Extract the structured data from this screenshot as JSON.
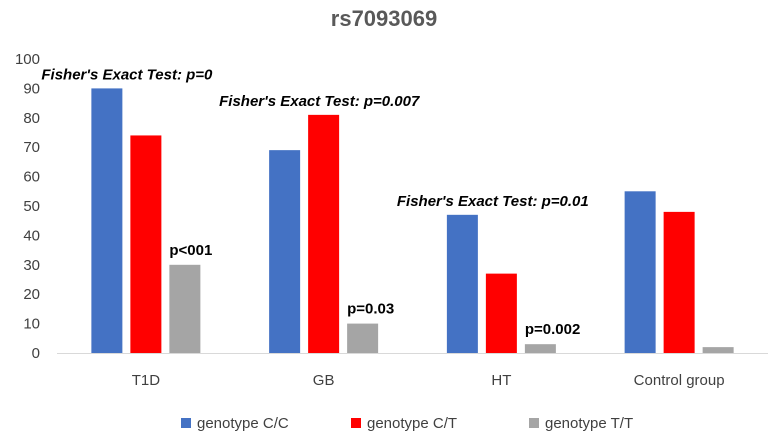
{
  "chart_data": {
    "type": "bar",
    "title": "rs7093069",
    "xlabel": "",
    "ylabel": "",
    "ylim": [
      0,
      100
    ],
    "yticks": [
      0,
      10,
      20,
      30,
      40,
      50,
      60,
      70,
      80,
      90,
      100
    ],
    "grid": false,
    "legend_position": "bottom",
    "categories": [
      "T1D",
      "GB",
      "HT",
      "Control group"
    ],
    "series": [
      {
        "name": "genotype C/C",
        "color": "#4472C4",
        "values": [
          90,
          69,
          47,
          55
        ]
      },
      {
        "name": "genotype C/T",
        "color": "#FF0000",
        "values": [
          74,
          81,
          27,
          48
        ]
      },
      {
        "name": "genotype T/T",
        "color": "#A5A5A5",
        "values": [
          30,
          10,
          3,
          2
        ]
      }
    ],
    "annotations": [
      {
        "text": "Fisher's Exact Test: p=0",
        "category": "T1D"
      },
      {
        "text": "Fisher's Exact Test: p=0.007",
        "category": "GB"
      },
      {
        "text": "Fisher's Exact Test: p=0.01",
        "category": "HT"
      }
    ],
    "pvalue_labels": [
      {
        "text": "p<001",
        "category": "T1D",
        "series": "genotype T/T"
      },
      {
        "text": "p=0.03",
        "category": "GB",
        "series": "genotype T/T"
      },
      {
        "text": "p=0.002",
        "category": "HT",
        "series": "genotype T/T"
      }
    ]
  }
}
